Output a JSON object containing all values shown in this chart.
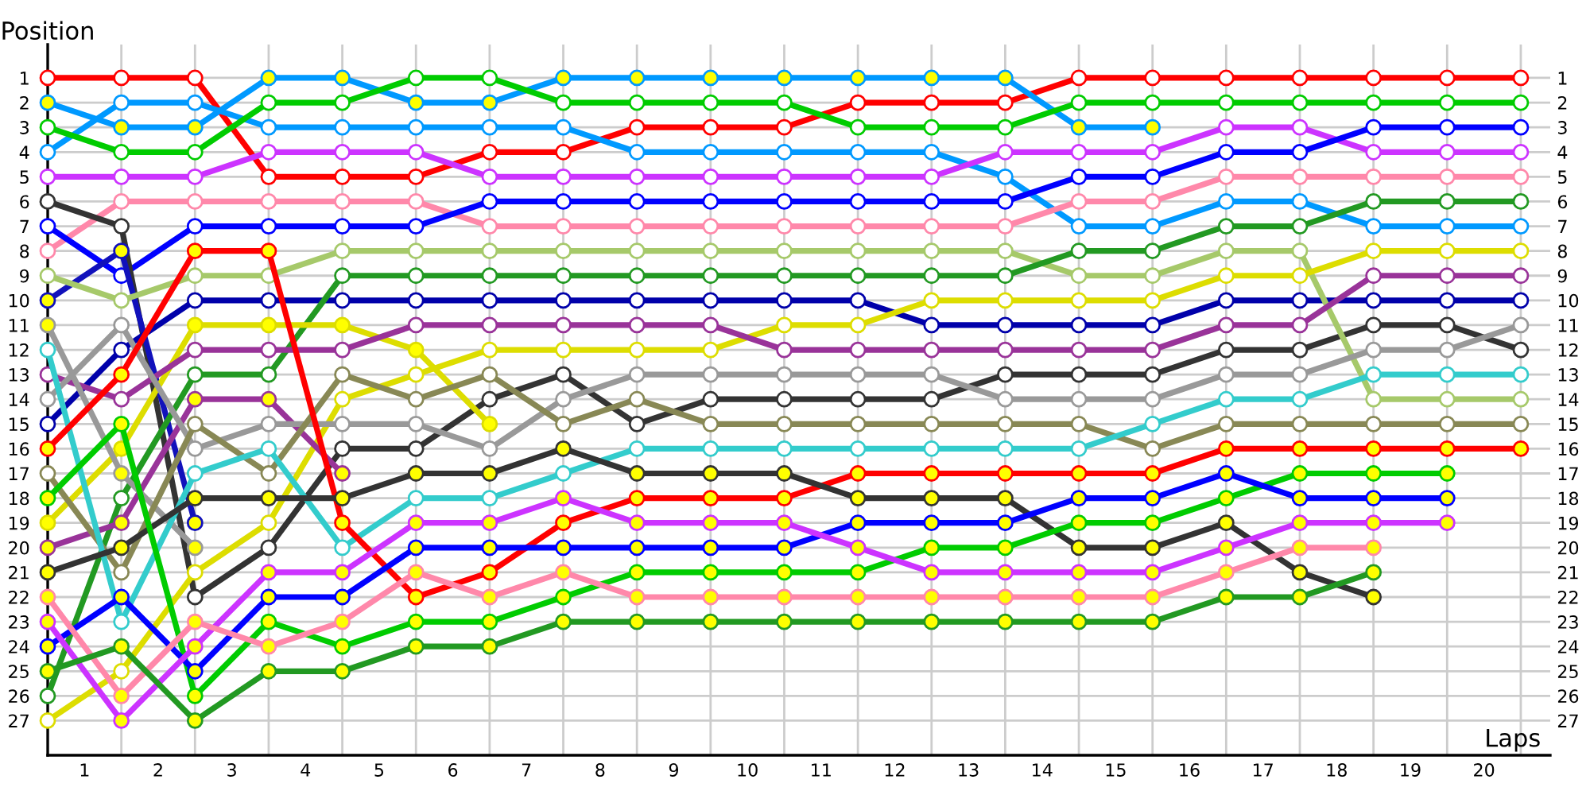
{
  "chart_data": {
    "type": "line",
    "xlabel": "Laps",
    "ylabel": "Position",
    "marker": "circle",
    "line_style": "solid",
    "grid": true,
    "xlim": [
      0,
      20.4
    ],
    "xticks": [
      {
        "value": 0.5,
        "label": "1"
      },
      {
        "value": 1.5,
        "label": "2"
      },
      {
        "value": 2.5,
        "label": "3"
      },
      {
        "value": 3.5,
        "label": "4"
      },
      {
        "value": 4.5,
        "label": "5"
      },
      {
        "value": 5.5,
        "label": "6"
      },
      {
        "value": 6.5,
        "label": "7"
      },
      {
        "value": 7.5,
        "label": "8"
      },
      {
        "value": 8.5,
        "label": "9"
      },
      {
        "value": 9.5,
        "label": "10"
      },
      {
        "value": 10.5,
        "label": "11"
      },
      {
        "value": 11.5,
        "label": "12"
      },
      {
        "value": 12.5,
        "label": "13"
      },
      {
        "value": 13.5,
        "label": "14"
      },
      {
        "value": 14.5,
        "label": "15"
      },
      {
        "value": 15.5,
        "label": "16"
      },
      {
        "value": 16.5,
        "label": "17"
      },
      {
        "value": 17.5,
        "label": "18"
      },
      {
        "value": 18.5,
        "label": "19"
      },
      {
        "value": 19.5,
        "label": "20"
      }
    ],
    "ylim": [
      28.4,
      -0.35
    ],
    "yticks": [
      1,
      2,
      3,
      4,
      5,
      6,
      7,
      8,
      9,
      10,
      11,
      12,
      13,
      14,
      15,
      16,
      17,
      18,
      19,
      20,
      21,
      22,
      23,
      24,
      25,
      26,
      27
    ],
    "y2lim": [
      28.4,
      -0.35
    ],
    "y2ticks": [
      1,
      2,
      3,
      4,
      5,
      6,
      7,
      8,
      9,
      10,
      11,
      12,
      13,
      14,
      15,
      16,
      17,
      18,
      19,
      20,
      21,
      22,
      23,
      24,
      25,
      26,
      27
    ],
    "x": [
      0,
      1,
      2,
      3,
      4,
      5,
      6,
      7,
      8,
      9,
      10,
      11,
      12,
      13,
      14,
      15,
      16,
      17,
      18,
      19,
      20
    ],
    "series": [
      {
        "color": "#ff0000",
        "values": [
          1,
          1,
          1,
          5,
          5,
          5,
          4,
          4,
          3,
          3,
          3,
          2,
          2,
          2,
          1,
          1,
          1,
          1,
          1,
          1,
          1
        ],
        "colors": [
          "#ffffff",
          "#ffffff",
          "#ffffff",
          "#ffffff",
          "#ffffff",
          "#ffffff",
          "#ffffff",
          "#ffffff",
          "#ffffff",
          "#ffffff",
          "#ffffff",
          "#ffffff",
          "#ffffff",
          "#ffffff",
          "#ffffff",
          "#ffffff",
          "#ffffff",
          "#ffffff",
          "#ffffff",
          "#ffffff",
          "#ffffff"
        ]
      },
      {
        "color": "#0099ff",
        "values": [
          2,
          3,
          3,
          1,
          1,
          2,
          2,
          1,
          1,
          1,
          1,
          1,
          1,
          1,
          3,
          3,
          null,
          null,
          null,
          null,
          null
        ],
        "colors": [
          "#ffff00",
          "#ffff00",
          "#ffff00",
          "#ffff00",
          "#ffff00",
          "#ffff00",
          "#ffff00",
          "#ffff00",
          "#ffff00",
          "#ffff00",
          "#ffff00",
          "#ffff00",
          "#ffff00",
          "#ffff00",
          "#ffff00",
          "#ffff00",
          null,
          null,
          null,
          null,
          null
        ]
      },
      {
        "color": "#0099ff",
        "values": [
          4,
          2,
          2,
          3,
          3,
          3,
          3,
          3,
          4,
          4,
          4,
          4,
          4,
          5,
          7,
          7,
          6,
          6,
          7,
          7,
          7
        ],
        "colors": [
          "#ffffff",
          "#ffffff",
          "#ffffff",
          "#ffffff",
          "#ffffff",
          "#ffffff",
          "#ffffff",
          "#ffffff",
          "#ffffff",
          "#ffffff",
          "#ffffff",
          "#ffffff",
          "#ffffff",
          "#ffffff",
          "#ffffff",
          "#ffffff",
          "#ffffff",
          "#ffffff",
          "#ffffff",
          "#ffffff",
          "#ffffff"
        ]
      },
      {
        "color": "#00cc00",
        "values": [
          3,
          4,
          4,
          2,
          2,
          1,
          1,
          2,
          2,
          2,
          2,
          3,
          3,
          3,
          2,
          2,
          2,
          2,
          2,
          2,
          2
        ],
        "colors": [
          "#ffffff",
          "#ffffff",
          "#ffffff",
          "#ffffff",
          "#ffffff",
          "#ffffff",
          "#ffffff",
          "#ffffff",
          "#ffffff",
          "#ffffff",
          "#ffffff",
          "#ffffff",
          "#ffffff",
          "#ffffff",
          "#ffffff",
          "#ffffff",
          "#ffffff",
          "#ffffff",
          "#ffffff",
          "#ffffff",
          "#ffffff"
        ]
      },
      {
        "color": "#cc33ff",
        "values": [
          5,
          5,
          5,
          4,
          4,
          4,
          5,
          5,
          5,
          5,
          5,
          5,
          5,
          4,
          4,
          4,
          3,
          3,
          4,
          4,
          4
        ],
        "colors": [
          "#ffffff",
          "#ffffff",
          "#ffffff",
          "#ffffff",
          "#ffffff",
          "#ffffff",
          "#ffffff",
          "#ffffff",
          "#ffffff",
          "#ffffff",
          "#ffffff",
          "#ffffff",
          "#ffffff",
          "#ffffff",
          "#ffffff",
          "#ffffff",
          "#ffffff",
          "#ffffff",
          "#ffffff",
          "#ffffff",
          "#ffffff"
        ]
      },
      {
        "color": "#ff88aa",
        "values": [
          8,
          6,
          6,
          6,
          6,
          6,
          7,
          7,
          7,
          7,
          7,
          7,
          7,
          7,
          6,
          6,
          5,
          5,
          5,
          5,
          5
        ],
        "colors": [
          "#ffffff",
          "#ffffff",
          "#ffffff",
          "#ffffff",
          "#ffffff",
          "#ffffff",
          "#ffffff",
          "#ffffff",
          "#ffffff",
          "#ffffff",
          "#ffffff",
          "#ffffff",
          "#ffffff",
          "#ffffff",
          "#ffffff",
          "#ffffff",
          "#ffffff",
          "#ffffff",
          "#ffffff",
          "#ffffff",
          "#ffffff"
        ]
      },
      {
        "color": "#0000ff",
        "values": [
          7,
          9,
          7,
          7,
          7,
          7,
          6,
          6,
          6,
          6,
          6,
          6,
          6,
          6,
          5,
          5,
          4,
          4,
          3,
          3,
          3
        ],
        "colors": [
          "#ffffff",
          "#ffffff",
          "#ffffff",
          "#ffffff",
          "#ffffff",
          "#ffffff",
          "#ffffff",
          "#ffffff",
          "#ffffff",
          "#ffffff",
          "#ffffff",
          "#ffffff",
          "#ffffff",
          "#ffffff",
          "#ffffff",
          "#ffffff",
          "#ffffff",
          "#ffffff",
          "#ffffff",
          "#ffffff",
          "#ffffff"
        ]
      },
      {
        "color": "#333333",
        "values": [
          6,
          7,
          22,
          20,
          16,
          16,
          14,
          13,
          15,
          14,
          14,
          14,
          14,
          13,
          13,
          13,
          12,
          12,
          11,
          11,
          12
        ],
        "colors": [
          "#ffffff",
          "#ffffff",
          "#ffffff",
          "#ffffff",
          "#ffffff",
          "#ffffff",
          "#ffffff",
          "#ffffff",
          "#ffffff",
          "#ffffff",
          "#ffffff",
          "#ffffff",
          "#ffffff",
          "#ffffff",
          "#ffffff",
          "#ffffff",
          "#ffffff",
          "#ffffff",
          "#ffffff",
          "#ffffff",
          "#ffffff"
        ]
      },
      {
        "color": "#1111bb",
        "values": [
          10,
          8,
          19,
          null,
          null,
          null,
          null,
          null,
          null,
          null,
          null,
          null,
          null,
          null,
          null,
          null,
          null,
          null,
          null,
          null,
          null
        ],
        "colors": [
          "#ffff00",
          "#ffff00",
          "#ffff00",
          null,
          null,
          null,
          null,
          null,
          null,
          null,
          null,
          null,
          null,
          null,
          null,
          null,
          null,
          null,
          null,
          null,
          null
        ]
      },
      {
        "color": "#0000aa",
        "values": [
          15,
          12,
          10,
          10,
          10,
          10,
          10,
          10,
          10,
          10,
          10,
          10,
          11,
          11,
          11,
          11,
          10,
          10,
          10,
          10,
          10
        ],
        "colors": [
          "#ffffff",
          "#ffffff",
          "#ffffff",
          "#ffffff",
          "#ffffff",
          "#ffffff",
          "#ffffff",
          "#ffffff",
          "#ffffff",
          "#ffffff",
          "#ffffff",
          "#ffffff",
          "#ffffff",
          "#ffffff",
          "#ffffff",
          "#ffffff",
          "#ffffff",
          "#ffffff",
          "#ffffff",
          "#ffffff",
          "#ffffff"
        ]
      },
      {
        "color": "#a6c96a",
        "values": [
          9,
          10,
          9,
          9,
          8,
          8,
          8,
          8,
          8,
          8,
          8,
          8,
          8,
          8,
          9,
          9,
          8,
          8,
          14,
          14,
          14
        ],
        "colors": [
          "#ffffff",
          "#ffffff",
          "#ffffff",
          "#ffffff",
          "#ffffff",
          "#ffffff",
          "#ffffff",
          "#ffffff",
          "#ffffff",
          "#ffffff",
          "#ffffff",
          "#ffffff",
          "#ffffff",
          "#ffffff",
          "#ffffff",
          "#ffffff",
          "#ffffff",
          "#ffffff",
          "#ffffff",
          "#ffffff",
          "#ffffff"
        ]
      },
      {
        "color": "#229922",
        "values": [
          26,
          18,
          13,
          13,
          9,
          9,
          9,
          9,
          9,
          9,
          9,
          9,
          9,
          9,
          8,
          8,
          7,
          7,
          6,
          6,
          6
        ],
        "colors": [
          "#ffffff",
          "#ffffff",
          "#ffffff",
          "#ffffff",
          "#ffffff",
          "#ffffff",
          "#ffffff",
          "#ffffff",
          "#ffffff",
          "#ffffff",
          "#ffffff",
          "#ffffff",
          "#ffffff",
          "#ffffff",
          "#ffffff",
          "#ffffff",
          "#ffffff",
          "#ffffff",
          "#ffffff",
          "#ffffff",
          "#ffffff"
        ]
      },
      {
        "color": "#dddd00",
        "values": [
          19,
          16,
          11,
          11,
          11,
          12,
          15,
          null,
          null,
          null,
          null,
          null,
          null,
          null,
          null,
          null,
          null,
          null,
          null,
          null,
          null
        ],
        "colors": [
          "#ffff00",
          "#ffff00",
          "#ffff00",
          "#ffff00",
          "#ffff00",
          "#ffff00",
          "#ffff00",
          null,
          null,
          null,
          null,
          null,
          null,
          null,
          null,
          null,
          null,
          null,
          null,
          null,
          null
        ]
      },
      {
        "color": "#dddd00",
        "values": [
          27,
          25,
          21,
          19,
          14,
          13,
          12,
          12,
          12,
          12,
          11,
          11,
          10,
          10,
          10,
          10,
          9,
          9,
          8,
          8,
          8
        ],
        "colors": [
          "#ffffff",
          "#ffffff",
          "#ffffff",
          "#ffffff",
          "#ffffff",
          "#ffffff",
          "#ffffff",
          "#ffffff",
          "#ffffff",
          "#ffffff",
          "#ffffff",
          "#ffffff",
          "#ffffff",
          "#ffffff",
          "#ffffff",
          "#ffffff",
          "#ffffff",
          "#ffffff",
          "#ffffff",
          "#ffffff",
          "#ffffff"
        ]
      },
      {
        "color": "#993399",
        "values": [
          13,
          14,
          12,
          12,
          12,
          11,
          11,
          11,
          11,
          11,
          12,
          12,
          12,
          12,
          12,
          12,
          11,
          11,
          9,
          9,
          9
        ],
        "colors": [
          "#ffffff",
          "#ffffff",
          "#ffffff",
          "#ffffff",
          "#ffffff",
          "#ffffff",
          "#ffffff",
          "#ffffff",
          "#ffffff",
          "#ffffff",
          "#ffffff",
          "#ffffff",
          "#ffffff",
          "#ffffff",
          "#ffffff",
          "#ffffff",
          "#ffffff",
          "#ffffff",
          "#ffffff",
          "#ffffff",
          "#ffffff"
        ]
      },
      {
        "color": "#993399",
        "values": [
          20,
          19,
          14,
          14,
          17,
          null,
          null,
          null,
          null,
          null,
          null,
          null,
          null,
          null,
          null,
          null,
          null,
          null,
          null,
          null,
          null
        ],
        "colors": [
          "#ffff00",
          "#ffff00",
          "#ffff00",
          "#ffff00",
          "#ffff00",
          null,
          null,
          null,
          null,
          null,
          null,
          null,
          null,
          null,
          null,
          null,
          null,
          null,
          null,
          null,
          null
        ]
      },
      {
        "color": "#999999",
        "values": [
          14,
          11,
          16,
          15,
          15,
          15,
          16,
          14,
          13,
          13,
          13,
          13,
          13,
          14,
          14,
          14,
          13,
          13,
          12,
          12,
          11
        ],
        "colors": [
          "#ffffff",
          "#ffffff",
          "#ffffff",
          "#ffffff",
          "#ffffff",
          "#ffffff",
          "#ffffff",
          "#ffffff",
          "#ffffff",
          "#ffffff",
          "#ffffff",
          "#ffffff",
          "#ffffff",
          "#ffffff",
          "#ffffff",
          "#ffffff",
          "#ffffff",
          "#ffffff",
          "#ffffff",
          "#ffffff",
          "#ffffff"
        ]
      },
      {
        "color": "#999999",
        "values": [
          11,
          17,
          20,
          null,
          null,
          null,
          null,
          null,
          null,
          null,
          null,
          null,
          null,
          null,
          null,
          null,
          null,
          null,
          null,
          null,
          null
        ],
        "colors": [
          "#ffff00",
          "#ffff00",
          "#ffff00",
          null,
          null,
          null,
          null,
          null,
          null,
          null,
          null,
          null,
          null,
          null,
          null,
          null,
          null,
          null,
          null,
          null,
          null
        ]
      },
      {
        "color": "#888855",
        "values": [
          17,
          21,
          15,
          17,
          13,
          14,
          13,
          15,
          14,
          15,
          15,
          15,
          15,
          15,
          15,
          16,
          15,
          15,
          15,
          15,
          15
        ],
        "colors": [
          "#ffffff",
          "#ffffff",
          "#ffffff",
          "#ffffff",
          "#ffffff",
          "#ffffff",
          "#ffffff",
          "#ffffff",
          "#ffffff",
          "#ffffff",
          "#ffffff",
          "#ffffff",
          "#ffffff",
          "#ffffff",
          "#ffffff",
          "#ffffff",
          "#ffffff",
          "#ffffff",
          "#ffffff",
          "#ffffff",
          "#ffffff"
        ]
      },
      {
        "color": "#33cccc",
        "values": [
          12,
          23,
          17,
          16,
          20,
          18,
          18,
          17,
          16,
          16,
          16,
          16,
          16,
          16,
          16,
          15,
          14,
          14,
          13,
          13,
          13
        ],
        "colors": [
          "#ffffff",
          "#ffffff",
          "#ffffff",
          "#ffffff",
          "#ffffff",
          "#ffffff",
          "#ffffff",
          "#ffffff",
          "#ffffff",
          "#ffffff",
          "#ffffff",
          "#ffffff",
          "#ffffff",
          "#ffffff",
          "#ffffff",
          "#ffffff",
          "#ffffff",
          "#ffffff",
          "#ffffff",
          "#ffffff",
          "#ffffff"
        ]
      },
      {
        "color": "#ff0000",
        "values": [
          16,
          13,
          8,
          8,
          19,
          22,
          21,
          19,
          18,
          18,
          18,
          17,
          17,
          17,
          17,
          17,
          16,
          16,
          16,
          16,
          16
        ],
        "colors": [
          "#ffff00",
          "#ffff00",
          "#ffff00",
          "#ffff00",
          "#ffff00",
          "#ffff00",
          "#ffff00",
          "#ffff00",
          "#ffff00",
          "#ffff00",
          "#ffff00",
          "#ffff00",
          "#ffff00",
          "#ffff00",
          "#ffff00",
          "#ffff00",
          "#ffff00",
          "#ffff00",
          "#ffff00",
          "#ffff00",
          "#ffff00"
        ]
      },
      {
        "color": "#333333",
        "values": [
          21,
          20,
          18,
          18,
          18,
          17,
          17,
          16,
          17,
          17,
          17,
          18,
          18,
          18,
          20,
          20,
          19,
          21,
          22,
          null,
          null
        ],
        "colors": [
          "#ffff00",
          "#ffff00",
          "#ffff00",
          "#ffff00",
          "#ffff00",
          "#ffff00",
          "#ffff00",
          "#ffff00",
          "#ffff00",
          "#ffff00",
          "#ffff00",
          "#ffff00",
          "#ffff00",
          "#ffff00",
          "#ffff00",
          "#ffff00",
          "#ffff00",
          "#ffff00",
          "#ffff00",
          null,
          null
        ]
      },
      {
        "color": "#00cc00",
        "values": [
          18,
          15,
          26,
          23,
          24,
          23,
          23,
          22,
          21,
          21,
          21,
          21,
          20,
          20,
          19,
          19,
          18,
          17,
          17,
          17,
          null
        ],
        "colors": [
          "#ffff00",
          "#ffff00",
          "#ffff00",
          "#ffff00",
          "#ffff00",
          "#ffff00",
          "#ffff00",
          "#ffff00",
          "#ffff00",
          "#ffff00",
          "#ffff00",
          "#ffff00",
          "#ffff00",
          "#ffff00",
          "#ffff00",
          "#ffff00",
          "#ffff00",
          "#ffff00",
          "#ffff00",
          "#ffff00",
          null
        ]
      },
      {
        "color": "#0000ff",
        "values": [
          24,
          22,
          25,
          22,
          22,
          20,
          20,
          20,
          20,
          20,
          20,
          19,
          19,
          19,
          18,
          18,
          17,
          18,
          18,
          18,
          null
        ],
        "colors": [
          "#ffff00",
          "#ffff00",
          "#ffff00",
          "#ffff00",
          "#ffff00",
          "#ffff00",
          "#ffff00",
          "#ffff00",
          "#ffff00",
          "#ffff00",
          "#ffff00",
          "#ffff00",
          "#ffff00",
          "#ffff00",
          "#ffff00",
          "#ffff00",
          "#ffff00",
          "#ffff00",
          "#ffff00",
          "#ffff00",
          null
        ]
      },
      {
        "color": "#cc33ff",
        "values": [
          23,
          27,
          24,
          21,
          21,
          19,
          19,
          18,
          19,
          19,
          19,
          20,
          21,
          21,
          21,
          21,
          20,
          19,
          19,
          19,
          null
        ],
        "colors": [
          "#ffff00",
          "#ffff00",
          "#ffff00",
          "#ffff00",
          "#ffff00",
          "#ffff00",
          "#ffff00",
          "#ffff00",
          "#ffff00",
          "#ffff00",
          "#ffff00",
          "#ffff00",
          "#ffff00",
          "#ffff00",
          "#ffff00",
          "#ffff00",
          "#ffff00",
          "#ffff00",
          "#ffff00",
          "#ffff00",
          null
        ]
      },
      {
        "color": "#ff88aa",
        "values": [
          22,
          26,
          23,
          24,
          23,
          21,
          22,
          21,
          22,
          22,
          22,
          22,
          22,
          22,
          22,
          22,
          21,
          20,
          20,
          null,
          null
        ],
        "colors": [
          "#ffff00",
          "#ffff00",
          "#ffff00",
          "#ffff00",
          "#ffff00",
          "#ffff00",
          "#ffff00",
          "#ffff00",
          "#ffff00",
          "#ffff00",
          "#ffff00",
          "#ffff00",
          "#ffff00",
          "#ffff00",
          "#ffff00",
          "#ffff00",
          "#ffff00",
          "#ffff00",
          "#ffff00",
          null,
          null
        ]
      },
      {
        "color": "#229922",
        "values": [
          25,
          24,
          27,
          25,
          25,
          24,
          24,
          23,
          23,
          23,
          23,
          23,
          23,
          23,
          23,
          23,
          22,
          22,
          21,
          null,
          null
        ],
        "colors": [
          "#ffff00",
          "#ffff00",
          "#ffff00",
          "#ffff00",
          "#ffff00",
          "#ffff00",
          "#ffff00",
          "#ffff00",
          "#ffff00",
          "#ffff00",
          "#ffff00",
          "#ffff00",
          "#ffff00",
          "#ffff00",
          "#ffff00",
          "#ffff00",
          "#ffff00",
          "#ffff00",
          "#ffff00",
          null,
          null
        ]
      }
    ]
  }
}
